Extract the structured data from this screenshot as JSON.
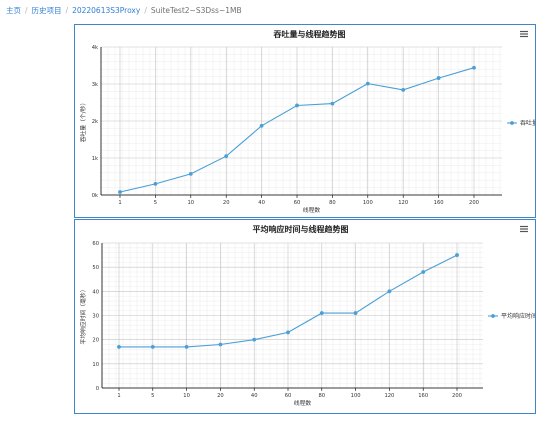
{
  "breadcrumb": {
    "items": [
      {
        "label": "主页",
        "link": true
      },
      {
        "label": "历史项目",
        "link": true
      },
      {
        "label": "20220613S3Proxy",
        "link": true
      },
      {
        "label": "SuiteTest2~S3Dss~1MB",
        "link": false
      }
    ]
  },
  "colors": {
    "series": "#4a9fd5",
    "border": "#3d86c8",
    "link": "#2f7fd6"
  },
  "chart_data": [
    {
      "type": "line",
      "title": "吞吐量与线程趋势图",
      "xlabel": "线程数",
      "ylabel": "吞吐量（个/秒）",
      "categories": [
        "1",
        "5",
        "10",
        "20",
        "40",
        "60",
        "80",
        "100",
        "120",
        "160",
        "200"
      ],
      "yticks": [
        "0k",
        "1k",
        "2k",
        "3k",
        "4k"
      ],
      "ylim": [
        0,
        4000
      ],
      "series": [
        {
          "name": "吞吐量",
          "values": [
            80,
            300,
            570,
            1050,
            1870,
            2420,
            2470,
            3010,
            2840,
            3160,
            3440
          ]
        }
      ],
      "grid": true,
      "legend": "right"
    },
    {
      "type": "line",
      "title": "平均响应时间与线程趋势图",
      "xlabel": "线程数",
      "ylabel": "平均响应时间（毫秒）",
      "categories": [
        "1",
        "5",
        "10",
        "20",
        "40",
        "60",
        "80",
        "100",
        "120",
        "160",
        "200"
      ],
      "yticks": [
        "0",
        "10",
        "20",
        "30",
        "40",
        "50",
        "60"
      ],
      "ylim": [
        0,
        60
      ],
      "series": [
        {
          "name": "平均响应时间",
          "values": [
            17,
            17,
            17,
            18,
            20,
            23,
            31,
            31,
            40,
            48,
            55
          ]
        }
      ],
      "grid": true,
      "legend": "right"
    }
  ]
}
